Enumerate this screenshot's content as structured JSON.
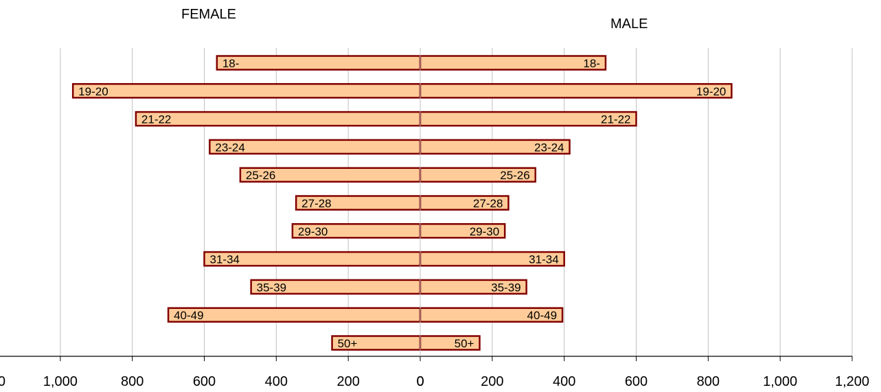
{
  "chart_data": {
    "type": "bar",
    "orientation": "horizontal",
    "layout": "population-pyramid",
    "categories": [
      "18-",
      "19-20",
      "21-22",
      "23-24",
      "25-26",
      "27-28",
      "29-30",
      "31-34",
      "35-39",
      "40-49",
      "50+"
    ],
    "series": [
      {
        "name": "FEMALE",
        "values": [
          565,
          965,
          790,
          585,
          500,
          345,
          355,
          600,
          470,
          700,
          245
        ]
      },
      {
        "name": "MALE",
        "values": [
          515,
          865,
          600,
          415,
          320,
          245,
          235,
          400,
          295,
          395,
          165
        ]
      }
    ],
    "x_ticks": [
      "0",
      "200",
      "400",
      "600",
      "800",
      "1,000",
      "1,200"
    ],
    "xlim": [
      0,
      1200
    ],
    "grid": true,
    "colors": {
      "bar_fill": "#ffcc99",
      "bar_stroke": "#800000",
      "grid": "#c0c0c0",
      "axis": "#000000"
    }
  }
}
